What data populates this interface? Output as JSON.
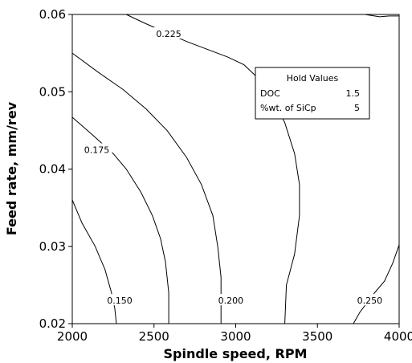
{
  "chart_data": {
    "type": "contour",
    "title": "",
    "xlabel": "Spindle speed, RPM",
    "ylabel": "Feed rate, mm/rev",
    "xlim": [
      2000,
      4000
    ],
    "ylim": [
      0.02,
      0.06
    ],
    "xticks": [
      2000,
      2500,
      3000,
      3500,
      4000
    ],
    "yticks": [
      0.02,
      0.03,
      0.04,
      0.05,
      0.06
    ],
    "xtick_labels": [
      "2000",
      "2500",
      "3000",
      "3500",
      "4000"
    ],
    "ytick_labels": [
      "0.02",
      "0.03",
      "0.04",
      "0.05",
      "0.06"
    ],
    "grid": false,
    "contours": [
      {
        "level": 0.15,
        "label": "0.150",
        "label_at": [
          2290,
          0.023
        ],
        "points": [
          [
            2000,
            0.036
          ],
          [
            2060,
            0.033
          ],
          [
            2140,
            0.03
          ],
          [
            2200,
            0.027
          ],
          [
            2240,
            0.024
          ],
          [
            2260,
            0.022
          ],
          [
            2270,
            0.02
          ]
        ]
      },
      {
        "level": 0.175,
        "label": "0.175",
        "label_at": [
          2150,
          0.0425
        ],
        "points": [
          [
            2000,
            0.0467
          ],
          [
            2130,
            0.0443
          ],
          [
            2250,
            0.042
          ],
          [
            2330,
            0.04
          ],
          [
            2420,
            0.037
          ],
          [
            2490,
            0.034
          ],
          [
            2540,
            0.031
          ],
          [
            2570,
            0.028
          ],
          [
            2590,
            0.024
          ],
          [
            2590,
            0.02
          ]
        ]
      },
      {
        "level": 0.2,
        "label": "0.200",
        "label_at": [
          2970,
          0.023
        ],
        "points": [
          [
            2000,
            0.055
          ],
          [
            2160,
            0.0525
          ],
          [
            2310,
            0.0503
          ],
          [
            2450,
            0.0478
          ],
          [
            2580,
            0.045
          ],
          [
            2700,
            0.0415
          ],
          [
            2790,
            0.038
          ],
          [
            2860,
            0.034
          ],
          [
            2890,
            0.03
          ],
          [
            2910,
            0.026
          ],
          [
            2910,
            0.02
          ]
        ]
      },
      {
        "level": 0.225,
        "label": "0.225",
        "label_at": [
          2590,
          0.0575
        ],
        "points": [
          [
            2330,
            0.06
          ],
          [
            2450,
            0.0588
          ],
          [
            2700,
            0.0565
          ],
          [
            2950,
            0.0545
          ],
          [
            3050,
            0.0535
          ],
          [
            3150,
            0.0515
          ],
          [
            3230,
            0.049
          ],
          [
            3300,
            0.046
          ],
          [
            3360,
            0.042
          ],
          [
            3390,
            0.038
          ],
          [
            3390,
            0.034
          ],
          [
            3360,
            0.029
          ],
          [
            3310,
            0.025
          ],
          [
            3300,
            0.02
          ]
        ]
      },
      {
        "level": 0.25,
        "label": "0.250",
        "label_at": [
          3820,
          0.023
        ],
        "points": [
          [
            3720,
            0.02
          ],
          [
            3760,
            0.0215
          ],
          [
            3850,
            0.024
          ],
          [
            3910,
            0.0255
          ],
          [
            3960,
            0.0278
          ],
          [
            4000,
            0.0302
          ]
        ]
      },
      {
        "level": 0.25,
        "label": "",
        "points": [
          [
            3790,
            0.06
          ],
          [
            3880,
            0.0597
          ],
          [
            3940,
            0.0598
          ],
          [
            4000,
            0.0598
          ]
        ]
      }
    ],
    "hold_values": {
      "title": "Hold Values",
      "rows": [
        {
          "name": "DOC",
          "value": "1.5"
        },
        {
          "name": "%wt. of SiCp",
          "value": "5"
        }
      ]
    }
  }
}
